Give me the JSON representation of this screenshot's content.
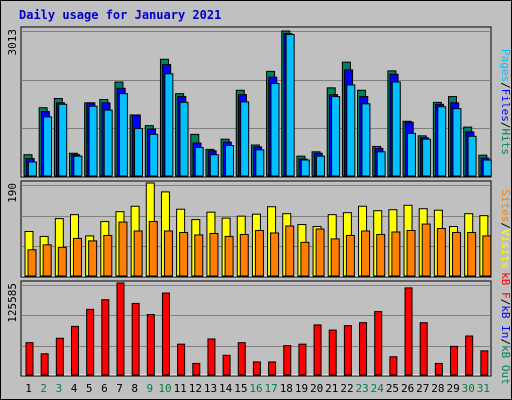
{
  "title": "Daily usage for January 2021",
  "colors": {
    "hits": "#00805c",
    "files": "#0000ff",
    "pages": "#00c0ff",
    "visits": "#ffff00",
    "sites": "#ff8000",
    "kb_out": "#00805c",
    "kb_in": "#0000ff",
    "kb_f": "#ff0000",
    "weekday_label": "#000000",
    "weekend_label": "#008040"
  },
  "chart_data": [
    {
      "type": "bar",
      "panel": "hits-files-pages",
      "ymax_label": "3013",
      "ylim": [
        0,
        3013
      ],
      "x": [
        1,
        2,
        3,
        4,
        5,
        6,
        7,
        8,
        9,
        10,
        11,
        12,
        13,
        14,
        15,
        16,
        17,
        18,
        19,
        20,
        21,
        22,
        23,
        24,
        25,
        26,
        27,
        28,
        29,
        30,
        31
      ],
      "series": [
        {
          "name": "Hits",
          "values": [
            460,
            1430,
            1620,
            490,
            1530,
            1600,
            1960,
            1280,
            1060,
            2430,
            1720,
            880,
            570,
            780,
            1790,
            660,
            2180,
            3013,
            430,
            520,
            1840,
            2370,
            1790,
            630,
            2190,
            1150,
            850,
            1540,
            1660,
            1030,
            450
          ]
        },
        {
          "name": "Files",
          "values": [
            380,
            1350,
            1530,
            460,
            1530,
            1530,
            1830,
            1280,
            990,
            2320,
            1660,
            700,
            540,
            720,
            1700,
            620,
            2060,
            2960,
            370,
            490,
            1700,
            2210,
            1660,
            590,
            2120,
            1130,
            810,
            1500,
            1530,
            930,
            390
          ]
        },
        {
          "name": "Pages",
          "values": [
            310,
            1240,
            1500,
            430,
            1460,
            1380,
            1720,
            1000,
            880,
            2130,
            1540,
            610,
            460,
            650,
            1550,
            560,
            1930,
            2940,
            350,
            430,
            1660,
            1900,
            1510,
            520,
            1960,
            900,
            780,
            1450,
            1410,
            840,
            350
          ]
        }
      ],
      "legend": [
        "Pages",
        "/",
        "Files",
        "/",
        "Hits"
      ]
    },
    {
      "type": "bar",
      "panel": "visits-sites",
      "ymax_label": "190",
      "ylim": [
        0,
        190
      ],
      "x": [
        1,
        2,
        3,
        4,
        5,
        6,
        7,
        8,
        9,
        10,
        11,
        12,
        13,
        14,
        15,
        16,
        17,
        18,
        19,
        20,
        21,
        22,
        23,
        24,
        25,
        26,
        27,
        28,
        29,
        30,
        31
      ],
      "series": [
        {
          "name": "Visits",
          "values": [
            92,
            82,
            118,
            126,
            83,
            112,
            132,
            143,
            190,
            172,
            137,
            116,
            131,
            119,
            123,
            127,
            142,
            128,
            106,
            102,
            126,
            130,
            143,
            134,
            136,
            145,
            138,
            135,
            102,
            128,
            124
          ]
        },
        {
          "name": "Sites",
          "values": [
            55,
            65,
            60,
            78,
            73,
            84,
            111,
            93,
            112,
            93,
            90,
            85,
            88,
            82,
            86,
            94,
            89,
            103,
            70,
            97,
            77,
            84,
            93,
            86,
            91,
            94,
            107,
            98,
            90,
            90,
            83
          ]
        }
      ],
      "legend": [
        "Sites",
        "/",
        "Visits"
      ]
    },
    {
      "type": "bar",
      "panel": "kbytes",
      "ymax_label": "125585",
      "ylim": [
        0,
        125585
      ],
      "x": [
        1,
        2,
        3,
        4,
        5,
        6,
        7,
        8,
        9,
        10,
        11,
        12,
        13,
        14,
        15,
        16,
        17,
        18,
        19,
        20,
        21,
        22,
        23,
        24,
        25,
        26,
        27,
        28,
        29,
        30,
        31
      ],
      "series": [
        {
          "name": "kB F",
          "values": [
            45000,
            30000,
            51000,
            67000,
            90000,
            103000,
            125585,
            98000,
            83000,
            112000,
            43000,
            17000,
            50000,
            28000,
            45000,
            19000,
            19000,
            41000,
            43000,
            69000,
            62000,
            68000,
            72000,
            87000,
            26000,
            119000,
            72000,
            17000,
            40000,
            54000,
            34000
          ]
        }
      ],
      "legend": [
        "kB F",
        "/",
        "kB In",
        "/",
        "kB Out"
      ]
    }
  ],
  "days": [
    {
      "label": "1",
      "weekend": false
    },
    {
      "label": "2",
      "weekend": true
    },
    {
      "label": "3",
      "weekend": true
    },
    {
      "label": "4",
      "weekend": false
    },
    {
      "label": "5",
      "weekend": false
    },
    {
      "label": "6",
      "weekend": false
    },
    {
      "label": "7",
      "weekend": false
    },
    {
      "label": "8",
      "weekend": false
    },
    {
      "label": "9",
      "weekend": true
    },
    {
      "label": "10",
      "weekend": true
    },
    {
      "label": "11",
      "weekend": false
    },
    {
      "label": "12",
      "weekend": false
    },
    {
      "label": "13",
      "weekend": false
    },
    {
      "label": "14",
      "weekend": false
    },
    {
      "label": "15",
      "weekend": false
    },
    {
      "label": "16",
      "weekend": true
    },
    {
      "label": "17",
      "weekend": true
    },
    {
      "label": "18",
      "weekend": false
    },
    {
      "label": "19",
      "weekend": false
    },
    {
      "label": "20",
      "weekend": false
    },
    {
      "label": "21",
      "weekend": false
    },
    {
      "label": "22",
      "weekend": false
    },
    {
      "label": "23",
      "weekend": true
    },
    {
      "label": "24",
      "weekend": true
    },
    {
      "label": "25",
      "weekend": false
    },
    {
      "label": "26",
      "weekend": false
    },
    {
      "label": "27",
      "weekend": false
    },
    {
      "label": "28",
      "weekend": false
    },
    {
      "label": "29",
      "weekend": false
    },
    {
      "label": "30",
      "weekend": true
    },
    {
      "label": "31",
      "weekend": true
    }
  ]
}
